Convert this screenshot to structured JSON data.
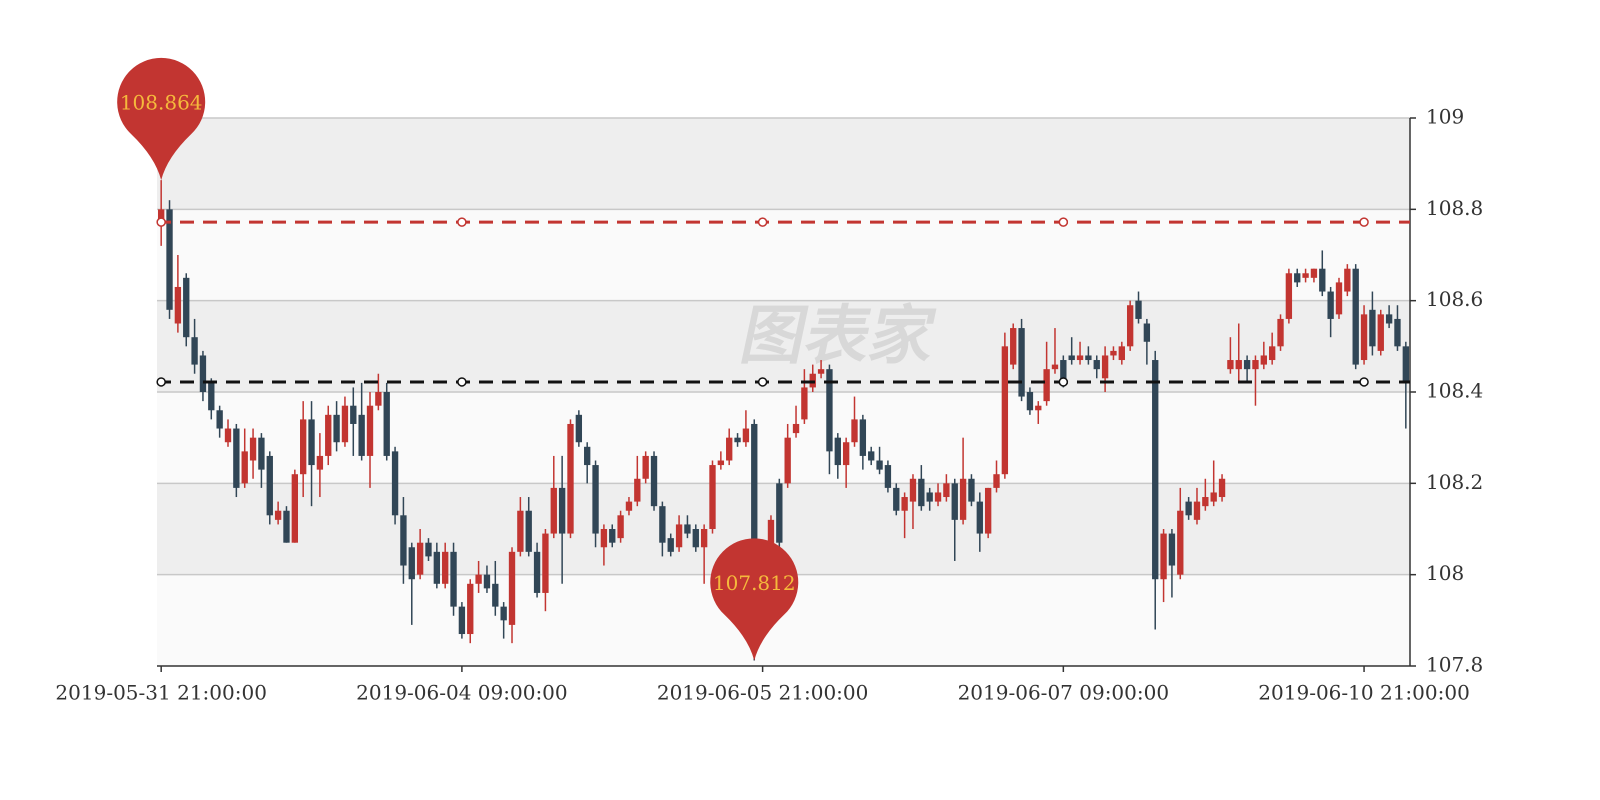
{
  "chart_data": {
    "type": "candlestick",
    "watermark": "图表家",
    "categories": [
      "2019-05-31 21:00:00",
      null,
      null,
      null,
      null,
      null,
      null,
      null,
      null,
      null,
      null,
      null,
      null,
      null,
      null,
      null,
      null,
      null,
      null,
      null,
      null,
      null,
      null,
      null,
      null,
      null,
      null,
      null,
      null,
      null,
      null,
      null,
      null,
      null,
      null,
      null,
      "2019-06-04 09:00:00",
      null,
      null,
      null,
      null,
      null,
      null,
      null,
      null,
      null,
      null,
      null,
      null,
      null,
      null,
      null,
      null,
      null,
      null,
      null,
      null,
      null,
      null,
      null,
      null,
      null,
      null,
      null,
      null,
      null,
      null,
      null,
      null,
      null,
      null,
      null,
      "2019-06-05 21:00:00",
      null,
      null,
      null,
      null,
      null,
      null,
      null,
      null,
      null,
      null,
      null,
      null,
      null,
      null,
      null,
      null,
      null,
      null,
      null,
      null,
      null,
      null,
      null,
      null,
      null,
      null,
      null,
      null,
      null,
      null,
      null,
      null,
      null,
      null,
      null,
      "2019-06-07 09:00:00",
      null,
      null,
      null,
      null,
      null,
      null,
      null,
      null,
      null,
      null,
      null,
      null,
      null,
      null,
      null,
      null,
      null,
      null,
      null,
      null,
      null,
      null,
      null,
      null,
      null,
      null,
      null,
      null,
      null,
      null,
      null,
      null,
      null,
      null,
      null,
      "2019-06-10 21:00:00",
      null,
      null,
      null,
      null,
      null
    ],
    "values": [
      [
        108.77,
        108.8,
        108.72,
        108.864
      ],
      [
        108.8,
        108.58,
        108.56,
        108.82
      ],
      [
        108.55,
        108.63,
        108.53,
        108.7
      ],
      [
        108.65,
        108.52,
        108.5,
        108.66
      ],
      [
        108.52,
        108.46,
        108.44,
        108.56
      ],
      [
        108.48,
        108.4,
        108.38,
        108.49
      ],
      [
        108.42,
        108.36,
        108.34,
        108.43
      ],
      [
        108.36,
        108.32,
        108.3,
        108.37
      ],
      [
        108.29,
        108.32,
        108.28,
        108.34
      ],
      [
        108.32,
        108.19,
        108.17,
        108.33
      ],
      [
        108.2,
        108.27,
        108.19,
        108.32
      ],
      [
        108.25,
        108.3,
        108.21,
        108.32
      ],
      [
        108.3,
        108.23,
        108.19,
        108.31
      ],
      [
        108.26,
        108.13,
        108.11,
        108.27
      ],
      [
        108.12,
        108.14,
        108.11,
        108.16
      ],
      [
        108.14,
        108.07,
        108.07,
        108.15
      ],
      [
        108.07,
        108.22,
        108.07,
        108.23
      ],
      [
        108.22,
        108.34,
        108.17,
        108.38
      ],
      [
        108.34,
        108.24,
        108.15,
        108.38
      ],
      [
        108.23,
        108.26,
        108.17,
        108.31
      ],
      [
        108.26,
        108.35,
        108.24,
        108.37
      ],
      [
        108.35,
        108.29,
        108.27,
        108.38
      ],
      [
        108.29,
        108.37,
        108.28,
        108.39
      ],
      [
        108.37,
        108.33,
        108.26,
        108.41
      ],
      [
        108.35,
        108.26,
        108.25,
        108.42
      ],
      [
        108.26,
        108.37,
        108.19,
        108.4
      ],
      [
        108.37,
        108.4,
        108.36,
        108.44
      ],
      [
        108.4,
        108.26,
        108.25,
        108.42
      ],
      [
        108.27,
        108.13,
        108.11,
        108.28
      ],
      [
        108.13,
        108.02,
        107.98,
        108.17
      ],
      [
        108.06,
        107.99,
        107.89,
        108.07
      ],
      [
        108.0,
        108.07,
        107.99,
        108.1
      ],
      [
        108.07,
        108.04,
        108.03,
        108.08
      ],
      [
        108.05,
        107.98,
        107.97,
        108.07
      ],
      [
        107.98,
        108.05,
        107.97,
        108.07
      ],
      [
        108.05,
        107.93,
        107.91,
        108.07
      ],
      [
        107.93,
        107.87,
        107.86,
        107.94
      ],
      [
        107.87,
        107.98,
        107.85,
        107.99
      ],
      [
        107.98,
        108.0,
        107.96,
        108.03
      ],
      [
        108.0,
        107.97,
        107.96,
        108.02
      ],
      [
        107.98,
        107.93,
        107.91,
        108.03
      ],
      [
        107.93,
        107.9,
        107.86,
        107.94
      ],
      [
        107.89,
        108.05,
        107.85,
        108.06
      ],
      [
        108.05,
        108.14,
        108.04,
        108.17
      ],
      [
        108.14,
        108.05,
        108.04,
        108.17
      ],
      [
        108.05,
        107.96,
        107.95,
        108.07
      ],
      [
        107.96,
        108.09,
        107.92,
        108.1
      ],
      [
        108.09,
        108.19,
        108.08,
        108.26
      ],
      [
        108.19,
        108.09,
        107.98,
        108.26
      ],
      [
        108.09,
        108.33,
        108.08,
        108.34
      ],
      [
        108.35,
        108.29,
        108.28,
        108.36
      ],
      [
        108.28,
        108.24,
        108.2,
        108.29
      ],
      [
        108.24,
        108.09,
        108.06,
        108.25
      ],
      [
        108.06,
        108.1,
        108.02,
        108.11
      ],
      [
        108.1,
        108.07,
        108.06,
        108.11
      ],
      [
        108.08,
        108.13,
        108.07,
        108.14
      ],
      [
        108.14,
        108.16,
        108.13,
        108.17
      ],
      [
        108.16,
        108.21,
        108.15,
        108.26
      ],
      [
        108.21,
        108.26,
        108.2,
        108.27
      ],
      [
        108.26,
        108.15,
        108.14,
        108.27
      ],
      [
        108.15,
        108.07,
        108.04,
        108.16
      ],
      [
        108.08,
        108.05,
        108.04,
        108.09
      ],
      [
        108.06,
        108.11,
        108.05,
        108.13
      ],
      [
        108.11,
        108.09,
        108.08,
        108.13
      ],
      [
        108.1,
        108.06,
        108.05,
        108.11
      ],
      [
        108.06,
        108.1,
        107.98,
        108.11
      ],
      [
        108.1,
        108.24,
        108.09,
        108.25
      ],
      [
        108.24,
        108.25,
        108.23,
        108.27
      ],
      [
        108.25,
        108.3,
        108.24,
        108.32
      ],
      [
        108.3,
        108.29,
        108.28,
        108.31
      ],
      [
        108.29,
        108.32,
        108.28,
        108.36
      ],
      [
        108.33,
        107.97,
        107.812,
        108.34
      ],
      [
        108.02,
        107.98,
        107.9,
        108.05
      ],
      [
        107.98,
        108.12,
        107.97,
        108.13
      ],
      [
        108.2,
        108.07,
        108.02,
        108.21
      ],
      [
        108.2,
        108.3,
        108.19,
        108.33
      ],
      [
        108.31,
        108.33,
        108.3,
        108.37
      ],
      [
        108.34,
        108.41,
        108.33,
        108.45
      ],
      [
        108.41,
        108.44,
        108.4,
        108.46
      ],
      [
        108.44,
        108.45,
        108.43,
        108.47
      ],
      [
        108.45,
        108.27,
        108.22,
        108.46
      ],
      [
        108.3,
        108.24,
        108.21,
        108.31
      ],
      [
        108.24,
        108.29,
        108.19,
        108.3
      ],
      [
        108.29,
        108.34,
        108.28,
        108.39
      ],
      [
        108.34,
        108.26,
        108.23,
        108.35
      ],
      [
        108.27,
        108.25,
        108.24,
        108.28
      ],
      [
        108.25,
        108.23,
        108.22,
        108.28
      ],
      [
        108.24,
        108.19,
        108.18,
        108.25
      ],
      [
        108.19,
        108.14,
        108.13,
        108.2
      ],
      [
        108.14,
        108.17,
        108.08,
        108.18
      ],
      [
        108.16,
        108.21,
        108.1,
        108.22
      ],
      [
        108.21,
        108.15,
        108.14,
        108.24
      ],
      [
        108.18,
        108.16,
        108.14,
        108.19
      ],
      [
        108.16,
        108.18,
        108.15,
        108.2
      ],
      [
        108.17,
        108.2,
        108.16,
        108.22
      ],
      [
        108.2,
        108.12,
        108.03,
        108.21
      ],
      [
        108.12,
        108.21,
        108.11,
        108.3
      ],
      [
        108.21,
        108.16,
        108.15,
        108.22
      ],
      [
        108.16,
        108.09,
        108.05,
        108.18
      ],
      [
        108.09,
        108.19,
        108.08,
        108.19
      ],
      [
        108.19,
        108.22,
        108.18,
        108.25
      ],
      [
        108.22,
        108.5,
        108.21,
        108.53
      ],
      [
        108.46,
        108.54,
        108.45,
        108.55
      ],
      [
        108.54,
        108.39,
        108.38,
        108.56
      ],
      [
        108.4,
        108.36,
        108.35,
        108.41
      ],
      [
        108.36,
        108.37,
        108.33,
        108.38
      ],
      [
        108.38,
        108.45,
        108.37,
        108.51
      ],
      [
        108.45,
        108.46,
        108.44,
        108.54
      ],
      [
        108.47,
        108.42,
        108.41,
        108.48
      ],
      [
        108.48,
        108.47,
        108.46,
        108.52
      ],
      [
        108.47,
        108.48,
        108.46,
        108.51
      ],
      [
        108.48,
        108.47,
        108.46,
        108.5
      ],
      [
        108.47,
        108.45,
        108.43,
        108.48
      ],
      [
        108.43,
        108.48,
        108.4,
        108.5
      ],
      [
        108.48,
        108.49,
        108.47,
        108.5
      ],
      [
        108.47,
        108.5,
        108.46,
        108.51
      ],
      [
        108.5,
        108.59,
        108.49,
        108.6
      ],
      [
        108.6,
        108.56,
        108.55,
        108.62
      ],
      [
        108.55,
        108.51,
        108.46,
        108.56
      ],
      [
        108.47,
        107.99,
        107.88,
        108.49
      ],
      [
        107.99,
        108.09,
        107.94,
        108.1
      ],
      [
        108.09,
        108.02,
        107.95,
        108.1
      ],
      [
        108.0,
        108.14,
        107.99,
        108.19
      ],
      [
        108.16,
        108.13,
        108.12,
        108.17
      ],
      [
        108.12,
        108.16,
        108.11,
        108.19
      ],
      [
        108.15,
        108.17,
        108.14,
        108.21
      ],
      [
        108.16,
        108.18,
        108.15,
        108.25
      ],
      [
        108.17,
        108.21,
        108.16,
        108.22
      ],
      [
        108.45,
        108.47,
        108.44,
        108.52
      ],
      [
        108.45,
        108.47,
        108.42,
        108.55
      ],
      [
        108.47,
        108.45,
        108.42,
        108.48
      ],
      [
        108.45,
        108.47,
        108.37,
        108.48
      ],
      [
        108.46,
        108.48,
        108.45,
        108.51
      ],
      [
        108.47,
        108.5,
        108.46,
        108.53
      ],
      [
        108.5,
        108.56,
        108.49,
        108.57
      ],
      [
        108.56,
        108.66,
        108.55,
        108.67
      ],
      [
        108.66,
        108.64,
        108.63,
        108.67
      ],
      [
        108.65,
        108.66,
        108.64,
        108.67
      ],
      [
        108.65,
        108.67,
        108.64,
        108.67
      ],
      [
        108.67,
        108.62,
        108.61,
        108.71
      ],
      [
        108.62,
        108.56,
        108.52,
        108.63
      ],
      [
        108.57,
        108.64,
        108.56,
        108.65
      ],
      [
        108.62,
        108.67,
        108.61,
        108.68
      ],
      [
        108.67,
        108.46,
        108.45,
        108.68
      ],
      [
        108.47,
        108.57,
        108.46,
        108.59
      ],
      [
        108.58,
        108.5,
        108.48,
        108.62
      ],
      [
        108.49,
        108.57,
        108.48,
        108.58
      ],
      [
        108.57,
        108.55,
        108.54,
        108.59
      ],
      [
        108.56,
        108.5,
        108.49,
        108.59
      ],
      [
        108.5,
        108.42,
        108.32,
        108.51
      ]
    ],
    "up_color": "#c23531",
    "down_color": "#314656",
    "ylim": [
      107.8,
      109
    ],
    "yticks": [
      107.8,
      108,
      108.2,
      108.4,
      108.6,
      108.8,
      109
    ],
    "split_area": true,
    "mark_lines": [
      {
        "value": 108.772,
        "color": "#c23531"
      },
      {
        "value": 108.422,
        "color": "#111111"
      }
    ],
    "mark_points": [
      {
        "value": 108.864,
        "color": "#c23531",
        "label_color": "#f5b93c"
      },
      {
        "value": 107.812,
        "color": "#c23531",
        "label_color": "#f5b93c"
      }
    ]
  }
}
